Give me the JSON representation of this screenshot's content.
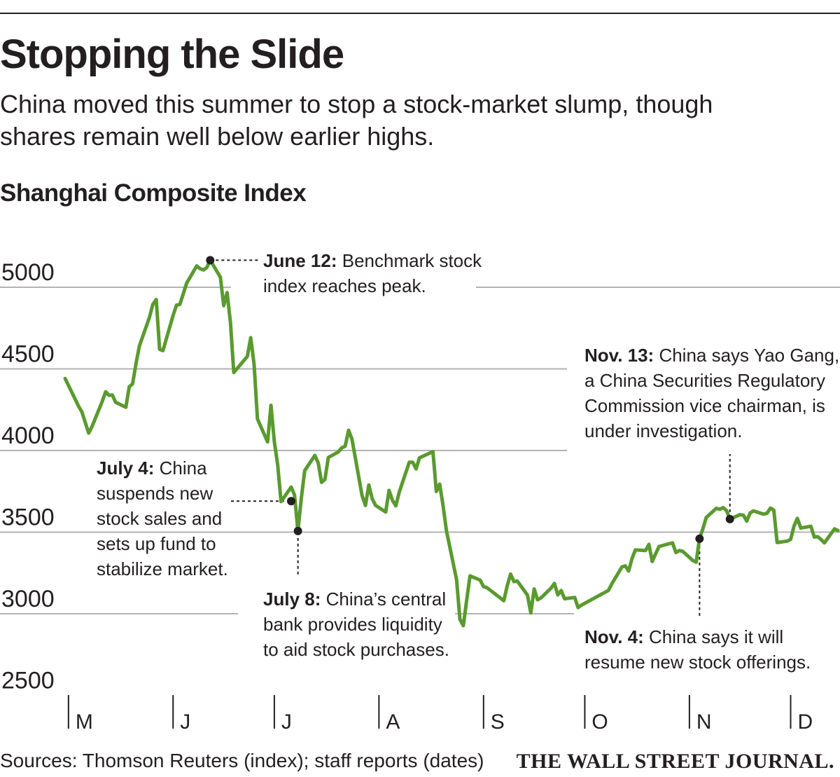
{
  "header": {
    "title": "Stopping the Slide",
    "subtitle": "China moved this summer to stop a stock-market slump, though\nshares remain well below earlier highs."
  },
  "chart_title": "Shanghai Composite Index",
  "footer": {
    "source": "Sources: Thomson Reuters (index); staff reports (dates)",
    "brand": "THE WALL STREET JOURNAL."
  },
  "colors": {
    "line": "#5a9a2f",
    "grid": "#b3b3b3",
    "text": "#231f20"
  },
  "chart_data": {
    "type": "line",
    "title": "Shanghai Composite Index",
    "ylim": [
      2500,
      5200
    ],
    "yticks": [
      2500,
      3000,
      3500,
      4000,
      4500,
      5000
    ],
    "grid": true,
    "x_range": [
      "2015-04-30",
      "2015-12-15"
    ],
    "xticks": [
      {
        "label": "M",
        "date": "2015-05-01"
      },
      {
        "label": "J",
        "date": "2015-06-01"
      },
      {
        "label": "J",
        "date": "2015-07-01"
      },
      {
        "label": "A",
        "date": "2015-08-01"
      },
      {
        "label": "S",
        "date": "2015-09-01"
      },
      {
        "label": "O",
        "date": "2015-10-01"
      },
      {
        "label": "N",
        "date": "2015-11-01"
      },
      {
        "label": "D",
        "date": "2015-12-01"
      }
    ],
    "series": [
      {
        "points": [
          [
            "2015-04-30",
            4441
          ],
          [
            "2015-05-04",
            4271
          ],
          [
            "2015-05-05",
            4235
          ],
          [
            "2015-05-06",
            4170
          ],
          [
            "2015-05-07",
            4107
          ],
          [
            "2015-05-08",
            4148
          ],
          [
            "2015-05-11",
            4300
          ],
          [
            "2015-05-12",
            4360
          ],
          [
            "2015-05-13",
            4338
          ],
          [
            "2015-05-14",
            4340
          ],
          [
            "2015-05-15",
            4295
          ],
          [
            "2015-05-18",
            4265
          ],
          [
            "2015-05-19",
            4390
          ],
          [
            "2015-05-20",
            4408
          ],
          [
            "2015-05-21",
            4530
          ],
          [
            "2015-05-22",
            4640
          ],
          [
            "2015-05-25",
            4816
          ],
          [
            "2015-05-26",
            4895
          ],
          [
            "2015-05-27",
            4925
          ],
          [
            "2015-05-28",
            4620
          ],
          [
            "2015-05-29",
            4612
          ],
          [
            "2015-06-01",
            4828
          ],
          [
            "2015-06-02",
            4890
          ],
          [
            "2015-06-03",
            4895
          ],
          [
            "2015-06-04",
            4958
          ],
          [
            "2015-06-05",
            5025
          ],
          [
            "2015-06-08",
            5131
          ],
          [
            "2015-06-09",
            5114
          ],
          [
            "2015-06-10",
            5106
          ],
          [
            "2015-06-11",
            5121
          ],
          [
            "2015-06-12",
            5166
          ],
          [
            "2015-06-15",
            5062
          ],
          [
            "2015-06-16",
            4887
          ],
          [
            "2015-06-17",
            4967
          ],
          [
            "2015-06-18",
            4785
          ],
          [
            "2015-06-19",
            4478
          ],
          [
            "2015-06-23",
            4576
          ],
          [
            "2015-06-24",
            4691
          ],
          [
            "2015-06-25",
            4527
          ],
          [
            "2015-06-26",
            4193
          ],
          [
            "2015-06-29",
            4053
          ],
          [
            "2015-06-30",
            4277
          ],
          [
            "2015-07-01",
            4054
          ],
          [
            "2015-07-02",
            3912
          ],
          [
            "2015-07-03",
            3687
          ],
          [
            "2015-07-06",
            3776
          ],
          [
            "2015-07-07",
            3727
          ],
          [
            "2015-07-08",
            3507
          ],
          [
            "2015-07-09",
            3709
          ],
          [
            "2015-07-10",
            3877
          ],
          [
            "2015-07-13",
            3970
          ],
          [
            "2015-07-14",
            3924
          ],
          [
            "2015-07-15",
            3805
          ],
          [
            "2015-07-16",
            3823
          ],
          [
            "2015-07-17",
            3957
          ],
          [
            "2015-07-20",
            3992
          ],
          [
            "2015-07-21",
            4017
          ],
          [
            "2015-07-22",
            4026
          ],
          [
            "2015-07-23",
            4124
          ],
          [
            "2015-07-24",
            4070
          ],
          [
            "2015-07-27",
            3725
          ],
          [
            "2015-07-28",
            3663
          ],
          [
            "2015-07-29",
            3789
          ],
          [
            "2015-07-30",
            3705
          ],
          [
            "2015-07-31",
            3664
          ],
          [
            "2015-08-03",
            3623
          ],
          [
            "2015-08-04",
            3756
          ],
          [
            "2015-08-05",
            3695
          ],
          [
            "2015-08-06",
            3661
          ],
          [
            "2015-08-07",
            3744
          ],
          [
            "2015-08-10",
            3928
          ],
          [
            "2015-08-11",
            3928
          ],
          [
            "2015-08-12",
            3887
          ],
          [
            "2015-08-13",
            3955
          ],
          [
            "2015-08-14",
            3965
          ],
          [
            "2015-08-17",
            3993
          ],
          [
            "2015-08-18",
            3749
          ],
          [
            "2015-08-19",
            3794
          ],
          [
            "2015-08-20",
            3664
          ],
          [
            "2015-08-21",
            3508
          ],
          [
            "2015-08-24",
            3210
          ],
          [
            "2015-08-25",
            2965
          ],
          [
            "2015-08-26",
            2927
          ],
          [
            "2015-08-27",
            3084
          ],
          [
            "2015-08-28",
            3232
          ],
          [
            "2015-08-31",
            3206
          ],
          [
            "2015-09-01",
            3166
          ],
          [
            "2015-09-02",
            3160
          ],
          [
            "2015-09-07",
            3080
          ],
          [
            "2015-09-08",
            3170
          ],
          [
            "2015-09-09",
            3243
          ],
          [
            "2015-09-10",
            3197
          ],
          [
            "2015-09-11",
            3200
          ],
          [
            "2015-09-14",
            3114
          ],
          [
            "2015-09-15",
            3005
          ],
          [
            "2015-09-16",
            3152
          ],
          [
            "2015-09-17",
            3086
          ],
          [
            "2015-09-18",
            3097
          ],
          [
            "2015-09-21",
            3157
          ],
          [
            "2015-09-22",
            3186
          ],
          [
            "2015-09-23",
            3116
          ],
          [
            "2015-09-24",
            3142
          ],
          [
            "2015-09-25",
            3092
          ],
          [
            "2015-09-28",
            3100
          ],
          [
            "2015-09-29",
            3038
          ],
          [
            "2015-09-30",
            3053
          ],
          [
            "2015-10-08",
            3143
          ],
          [
            "2015-10-09",
            3183
          ],
          [
            "2015-10-12",
            3287
          ],
          [
            "2015-10-13",
            3293
          ],
          [
            "2015-10-14",
            3262
          ],
          [
            "2015-10-15",
            3338
          ],
          [
            "2015-10-16",
            3391
          ],
          [
            "2015-10-19",
            3387
          ],
          [
            "2015-10-20",
            3425
          ],
          [
            "2015-10-21",
            3320
          ],
          [
            "2015-10-22",
            3368
          ],
          [
            "2015-10-23",
            3412
          ],
          [
            "2015-10-26",
            3429
          ],
          [
            "2015-10-27",
            3434
          ],
          [
            "2015-10-28",
            3375
          ],
          [
            "2015-10-29",
            3387
          ],
          [
            "2015-10-30",
            3383
          ],
          [
            "2015-11-02",
            3326
          ],
          [
            "2015-11-03",
            3316
          ],
          [
            "2015-11-04",
            3460
          ],
          [
            "2015-11-05",
            3522
          ],
          [
            "2015-11-06",
            3590
          ],
          [
            "2015-11-09",
            3646
          ],
          [
            "2015-11-10",
            3640
          ],
          [
            "2015-11-11",
            3650
          ],
          [
            "2015-11-12",
            3632
          ],
          [
            "2015-11-13",
            3580
          ],
          [
            "2015-11-16",
            3607
          ],
          [
            "2015-11-17",
            3604
          ],
          [
            "2015-11-18",
            3568
          ],
          [
            "2015-11-19",
            3618
          ],
          [
            "2015-11-20",
            3630
          ],
          [
            "2015-11-23",
            3610
          ],
          [
            "2015-11-24",
            3616
          ],
          [
            "2015-11-25",
            3647
          ],
          [
            "2015-11-26",
            3635
          ],
          [
            "2015-11-27",
            3436
          ],
          [
            "2015-11-30",
            3445
          ],
          [
            "2015-12-01",
            3456
          ],
          [
            "2015-12-02",
            3537
          ],
          [
            "2015-12-03",
            3584
          ],
          [
            "2015-12-04",
            3525
          ],
          [
            "2015-12-07",
            3536
          ],
          [
            "2015-12-08",
            3470
          ],
          [
            "2015-12-09",
            3472
          ],
          [
            "2015-12-10",
            3455
          ],
          [
            "2015-12-11",
            3434
          ],
          [
            "2015-12-14",
            3520
          ],
          [
            "2015-12-15",
            3510
          ]
        ]
      }
    ],
    "annotations": [
      {
        "id": "june12",
        "date": "2015-06-12",
        "value": 5166,
        "bold": "June 12:",
        "lines": [
          " Benchmark stock",
          "index reaches peak."
        ]
      },
      {
        "id": "july4",
        "date": "2015-07-06",
        "value": 3690,
        "bold": "July 4:",
        "lines": [
          " China",
          "suspends new",
          "stock sales and",
          "sets up fund to",
          "stabilize market."
        ]
      },
      {
        "id": "july8",
        "date": "2015-07-08",
        "value": 3507,
        "bold": "July 8:",
        "lines": [
          " China’s central",
          "bank provides liquidity",
          "to aid stock purchases."
        ]
      },
      {
        "id": "nov4",
        "date": "2015-11-04",
        "value": 3460,
        "bold": "Nov. 4:",
        "lines": [
          " China says it will",
          "resume new stock offerings."
        ]
      },
      {
        "id": "nov13",
        "date": "2015-11-13",
        "value": 3580,
        "bold": "Nov. 13:",
        "lines": [
          " China says Yao Gang,",
          "a China Securities Regulatory",
          "Commission vice chairman, is",
          "under investigation."
        ]
      }
    ]
  }
}
